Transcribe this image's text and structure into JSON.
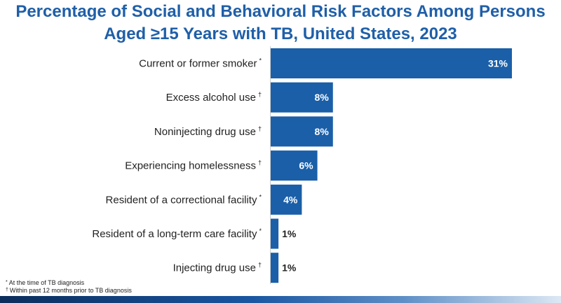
{
  "chart_data": {
    "type": "bar",
    "orientation": "horizontal",
    "title_line1": "Percentage of Social and Behavioral Risk Factors Among Persons",
    "title_line2": "Aged ≥15 Years with TB, United States, 2023",
    "categories": [
      "Current or former smoker",
      "Excess alcohol use",
      "Noninjecting drug use",
      "Experiencing homelessness",
      "Resident of a correctional facility",
      "Resident of a long-term care facility",
      "Injecting drug use"
    ],
    "markers": [
      "*",
      "†",
      "†",
      "†",
      "*",
      "*",
      "†"
    ],
    "values": [
      31,
      8,
      8,
      6,
      4,
      1,
      1
    ],
    "value_labels": [
      "31%",
      "8%",
      "8%",
      "6%",
      "4%",
      "1%",
      "1%"
    ],
    "xlim": [
      0,
      31
    ],
    "grid": false,
    "bar_color": "#1a5fa8"
  },
  "footnotes": [
    {
      "marker": "*",
      "text": "At the time of TB diagnosis"
    },
    {
      "marker": "†",
      "text": "Within past 12 months prior to TB diagnosis"
    }
  ]
}
